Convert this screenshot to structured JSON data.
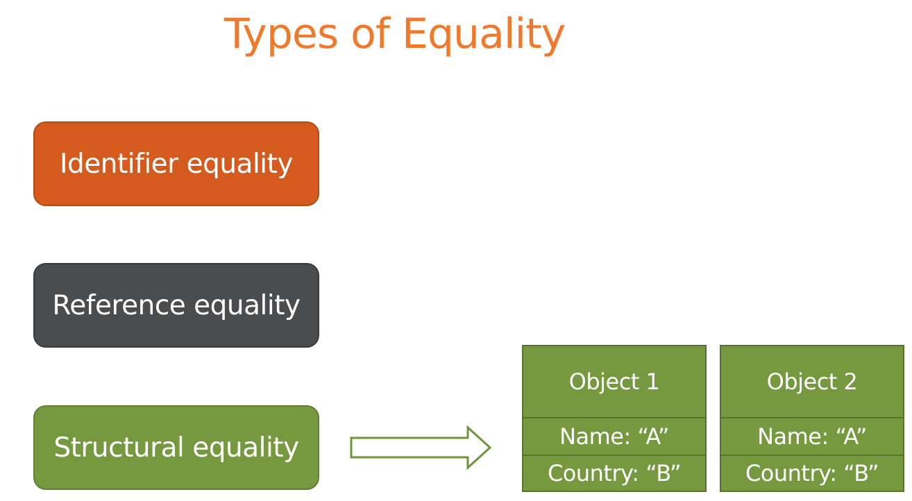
{
  "title": "Types of Equality",
  "equality_types": [
    {
      "label": "Identifier equality",
      "color": "#d45a1e"
    },
    {
      "label": "Reference equality",
      "color": "#4b4c4e"
    },
    {
      "label": "Structural equality",
      "color": "#76993f"
    }
  ],
  "arrow_icon": "right-arrow-outline-icon",
  "objects": [
    {
      "header": "Object 1",
      "name": "Name: “A”",
      "country": "Country: “B”"
    },
    {
      "header": "Object 2",
      "name": "Name: “A”",
      "country": "Country: “B”"
    }
  ],
  "colors": {
    "title": "#f07a2c",
    "object_fill": "#76993f",
    "object_border": "#54742a"
  }
}
